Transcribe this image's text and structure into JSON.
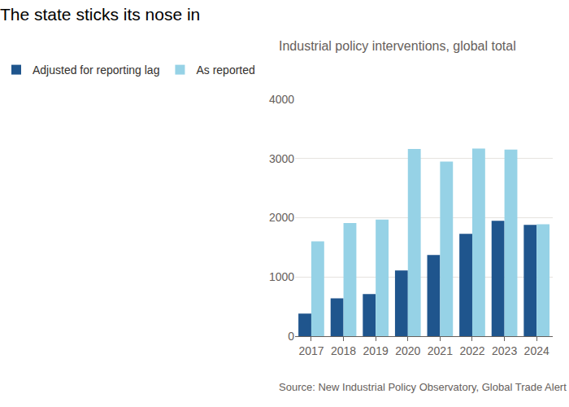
{
  "chart_data": {
    "type": "bar",
    "title": "The state sticks its nose in",
    "subtitle": "Industrial policy interventions, global total",
    "source": "Source: New Industrial Policy Observatory, Global Trade Alert",
    "categories": [
      "2017",
      "2018",
      "2019",
      "2020",
      "2021",
      "2022",
      "2023",
      "2024"
    ],
    "series": [
      {
        "name": "Adjusted for reporting lag",
        "color": "#1f558d",
        "values": [
          380,
          640,
          710,
          1110,
          1370,
          1730,
          1950,
          1880
        ]
      },
      {
        "name": "As reported",
        "color": "#96d2e6",
        "values": [
          1600,
          1910,
          1970,
          3160,
          2950,
          3170,
          3150,
          1890
        ]
      }
    ],
    "ylim": [
      0,
      4000
    ],
    "yticks": [
      0,
      1000,
      2000,
      3000,
      4000
    ],
    "grid": true,
    "legend": "top-left"
  }
}
